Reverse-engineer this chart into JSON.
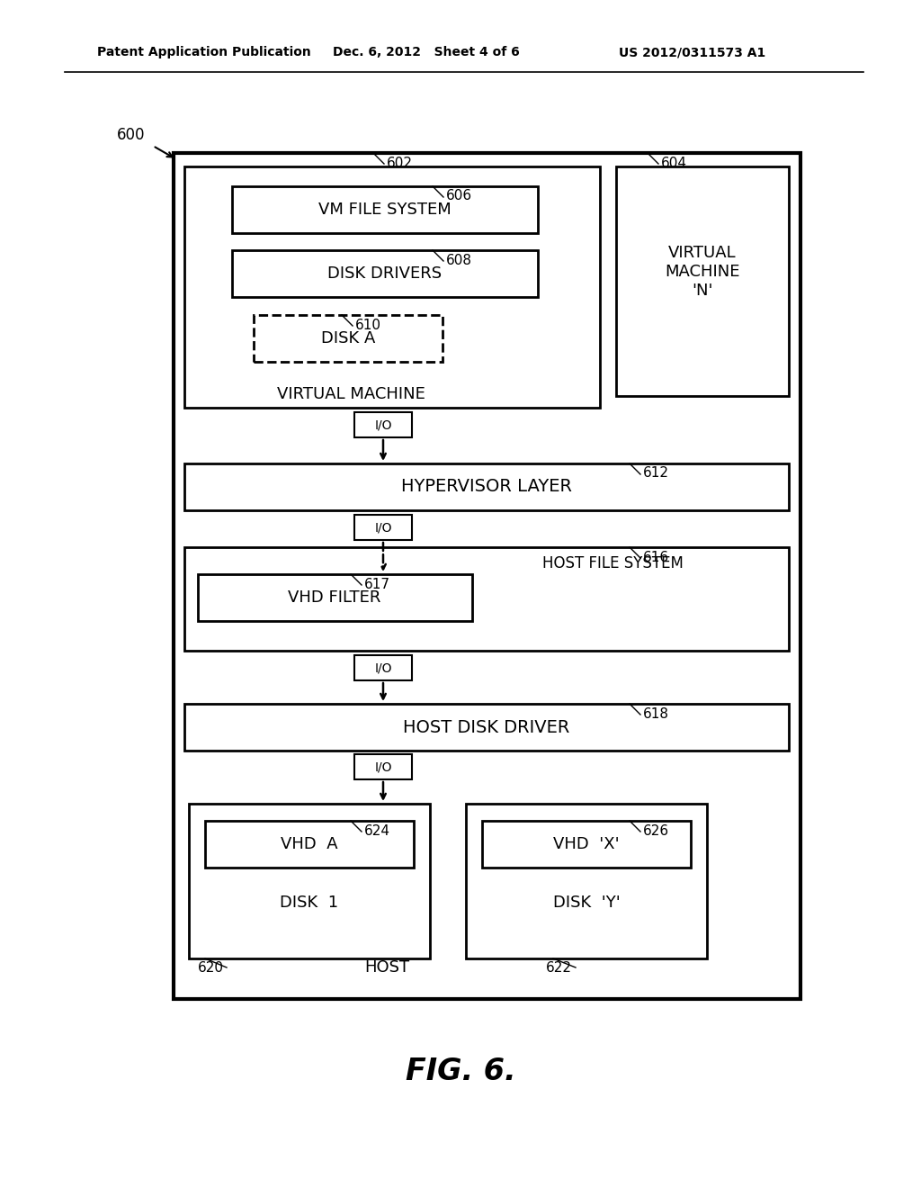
{
  "bg_color": "#ffffff",
  "header_left": "Patent Application Publication",
  "header_mid": "Dec. 6, 2012   Sheet 4 of 6",
  "header_right": "US 2012/0311573 A1",
  "fig_label": "FIG. 6.",
  "diagram_label": "600"
}
